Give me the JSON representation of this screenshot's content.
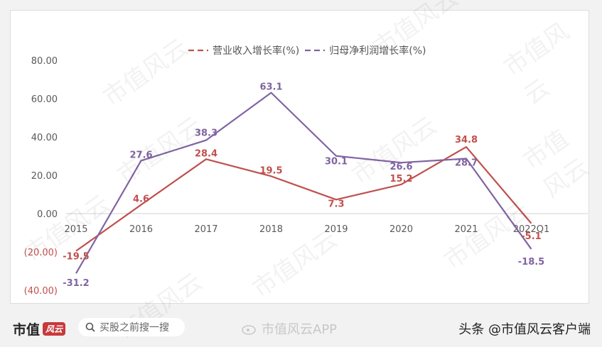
{
  "chart_data": {
    "type": "line",
    "categories": [
      "2015",
      "2016",
      "2017",
      "2018",
      "2019",
      "2020",
      "2021",
      "2022Q1"
    ],
    "series": [
      {
        "name": "营业收入增长率(%)",
        "values": [
          -19.5,
          4.6,
          28.4,
          19.5,
          7.3,
          15.2,
          34.8,
          -5.1
        ],
        "labels": [
          "-19.5",
          "4.6",
          "28.4",
          "19.5",
          "7.3",
          "15.2",
          "34.8",
          "-5.1"
        ],
        "color": "#c0504d"
      },
      {
        "name": "归母净利润增长率(%)",
        "values": [
          -31.2,
          27.6,
          38.3,
          63.1,
          30.1,
          26.6,
          28.7,
          -18.5
        ],
        "labels": [
          "-31.2",
          "27.6",
          "38.3",
          "63.1",
          "30.1",
          "26.6",
          "28.7",
          "-18.5"
        ],
        "color": "#8064a2"
      }
    ],
    "yticks": [
      "80.00",
      "60.00",
      "40.00",
      "20.00",
      "0.00",
      "(20.00)",
      "(40.00)"
    ],
    "ytick_values": [
      80,
      60,
      40,
      20,
      0,
      -20,
      -40
    ],
    "ylim": [
      -40,
      80
    ],
    "grid": false,
    "legend_position": "top"
  },
  "colors": {
    "revenue": "#c0504d",
    "profit": "#8064a2",
    "negative_tick": "#c0504d",
    "axis_text": "#595959"
  },
  "footer": {
    "brand": "市值",
    "brand_stamp": "风云",
    "search_text": "买股之前搜一搜",
    "weibo_text": "市值风云APP",
    "credit": "头条 @市值风云客户端"
  },
  "watermark_text": "市值风云"
}
